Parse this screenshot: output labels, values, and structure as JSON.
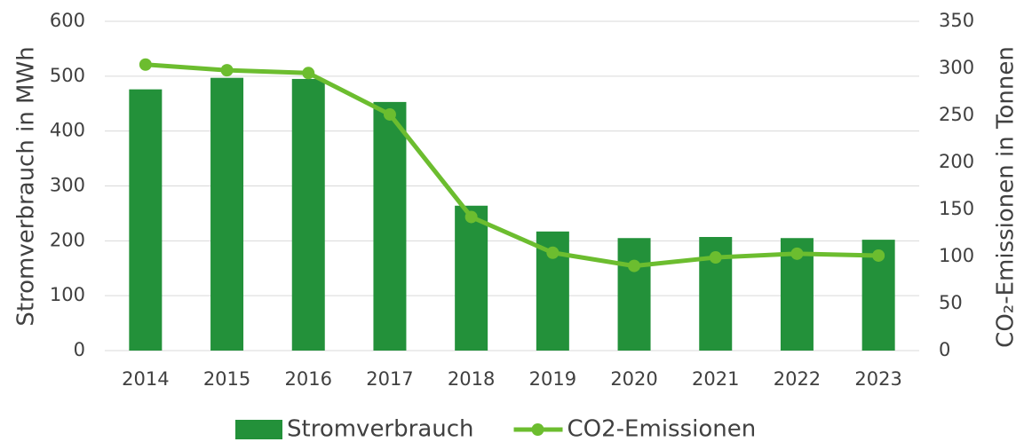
{
  "chart_data": {
    "type": "bar_line",
    "categories": [
      "2014",
      "2015",
      "2016",
      "2017",
      "2018",
      "2019",
      "2020",
      "2021",
      "2022",
      "2023"
    ],
    "series": [
      {
        "name": "Stromverbrauch",
        "color": "#23913a",
        "type": "bar",
        "axis": "y",
        "values": [
          476,
          497,
          495,
          453,
          264,
          217,
          205,
          207,
          205,
          202
        ]
      },
      {
        "name": "CO2-Emissionen",
        "color": "#6cbd2f",
        "type": "line",
        "axis": "y2",
        "values": [
          304,
          298,
          295,
          251,
          142,
          104,
          90,
          99,
          103,
          101
        ]
      }
    ],
    "ylabel": "Stromverbrauch in MWh",
    "y2label": "CO₂-Emissionen in Tonnen",
    "ylim": [
      0,
      600
    ],
    "yticks": [
      0,
      100,
      200,
      300,
      400,
      500,
      600
    ],
    "y2lim": [
      0,
      350
    ],
    "y2ticks": [
      0,
      50,
      100,
      150,
      200,
      250,
      300,
      350
    ],
    "grid": true,
    "legend": "bottom"
  }
}
